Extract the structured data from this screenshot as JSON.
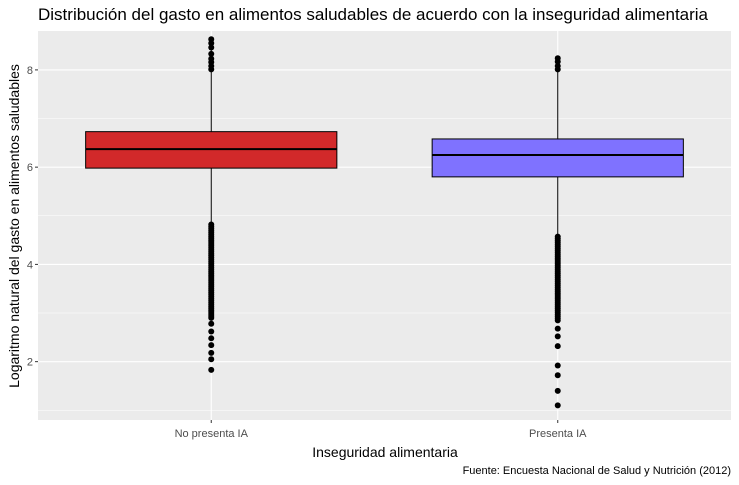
{
  "chart_data": {
    "type": "boxplot",
    "title": "Distribución del gasto en alimentos saludables de acuerdo con la inseguridad alimentaria",
    "xlabel": "Inseguridad alimentaria",
    "ylabel": "Logaritmo natural del gasto en alimentos saludables",
    "caption": "Fuente: Encuesta Nacional de Salud y Nutrición (2012)",
    "ylim": [
      0.8,
      8.8
    ],
    "yticks": [
      "2",
      "4",
      "6",
      "8"
    ],
    "grid": true,
    "colors": {
      "panel": "#EBEBEB",
      "grid": "#FFFFFF",
      "box_line": "#000000"
    },
    "categories": [
      "No presenta IA",
      "Presenta IA"
    ],
    "series": [
      {
        "fill": "#D2292A",
        "whisker_low": 4.87,
        "q1": 5.98,
        "median": 6.37,
        "q3": 6.73,
        "whisker_high": 8.62,
        "outlier_bands": [
          [
            2.9,
            4.85
          ]
        ],
        "outliers": [
          1.83,
          2.05,
          2.18,
          2.34,
          2.48,
          2.62,
          2.78,
          8.63,
          8.55,
          8.46,
          8.33,
          8.23,
          8.16,
          8.08,
          8.01
        ]
      },
      {
        "fill": "#7F72FF",
        "whisker_low": 4.62,
        "q1": 5.8,
        "median": 6.25,
        "q3": 6.58,
        "whisker_high": 7.98,
        "outlier_bands": [
          [
            2.85,
            4.6
          ]
        ],
        "outliers": [
          1.1,
          1.4,
          1.72,
          1.92,
          2.32,
          2.52,
          2.68,
          8.24,
          8.17,
          8.08,
          8.01
        ]
      }
    ]
  }
}
